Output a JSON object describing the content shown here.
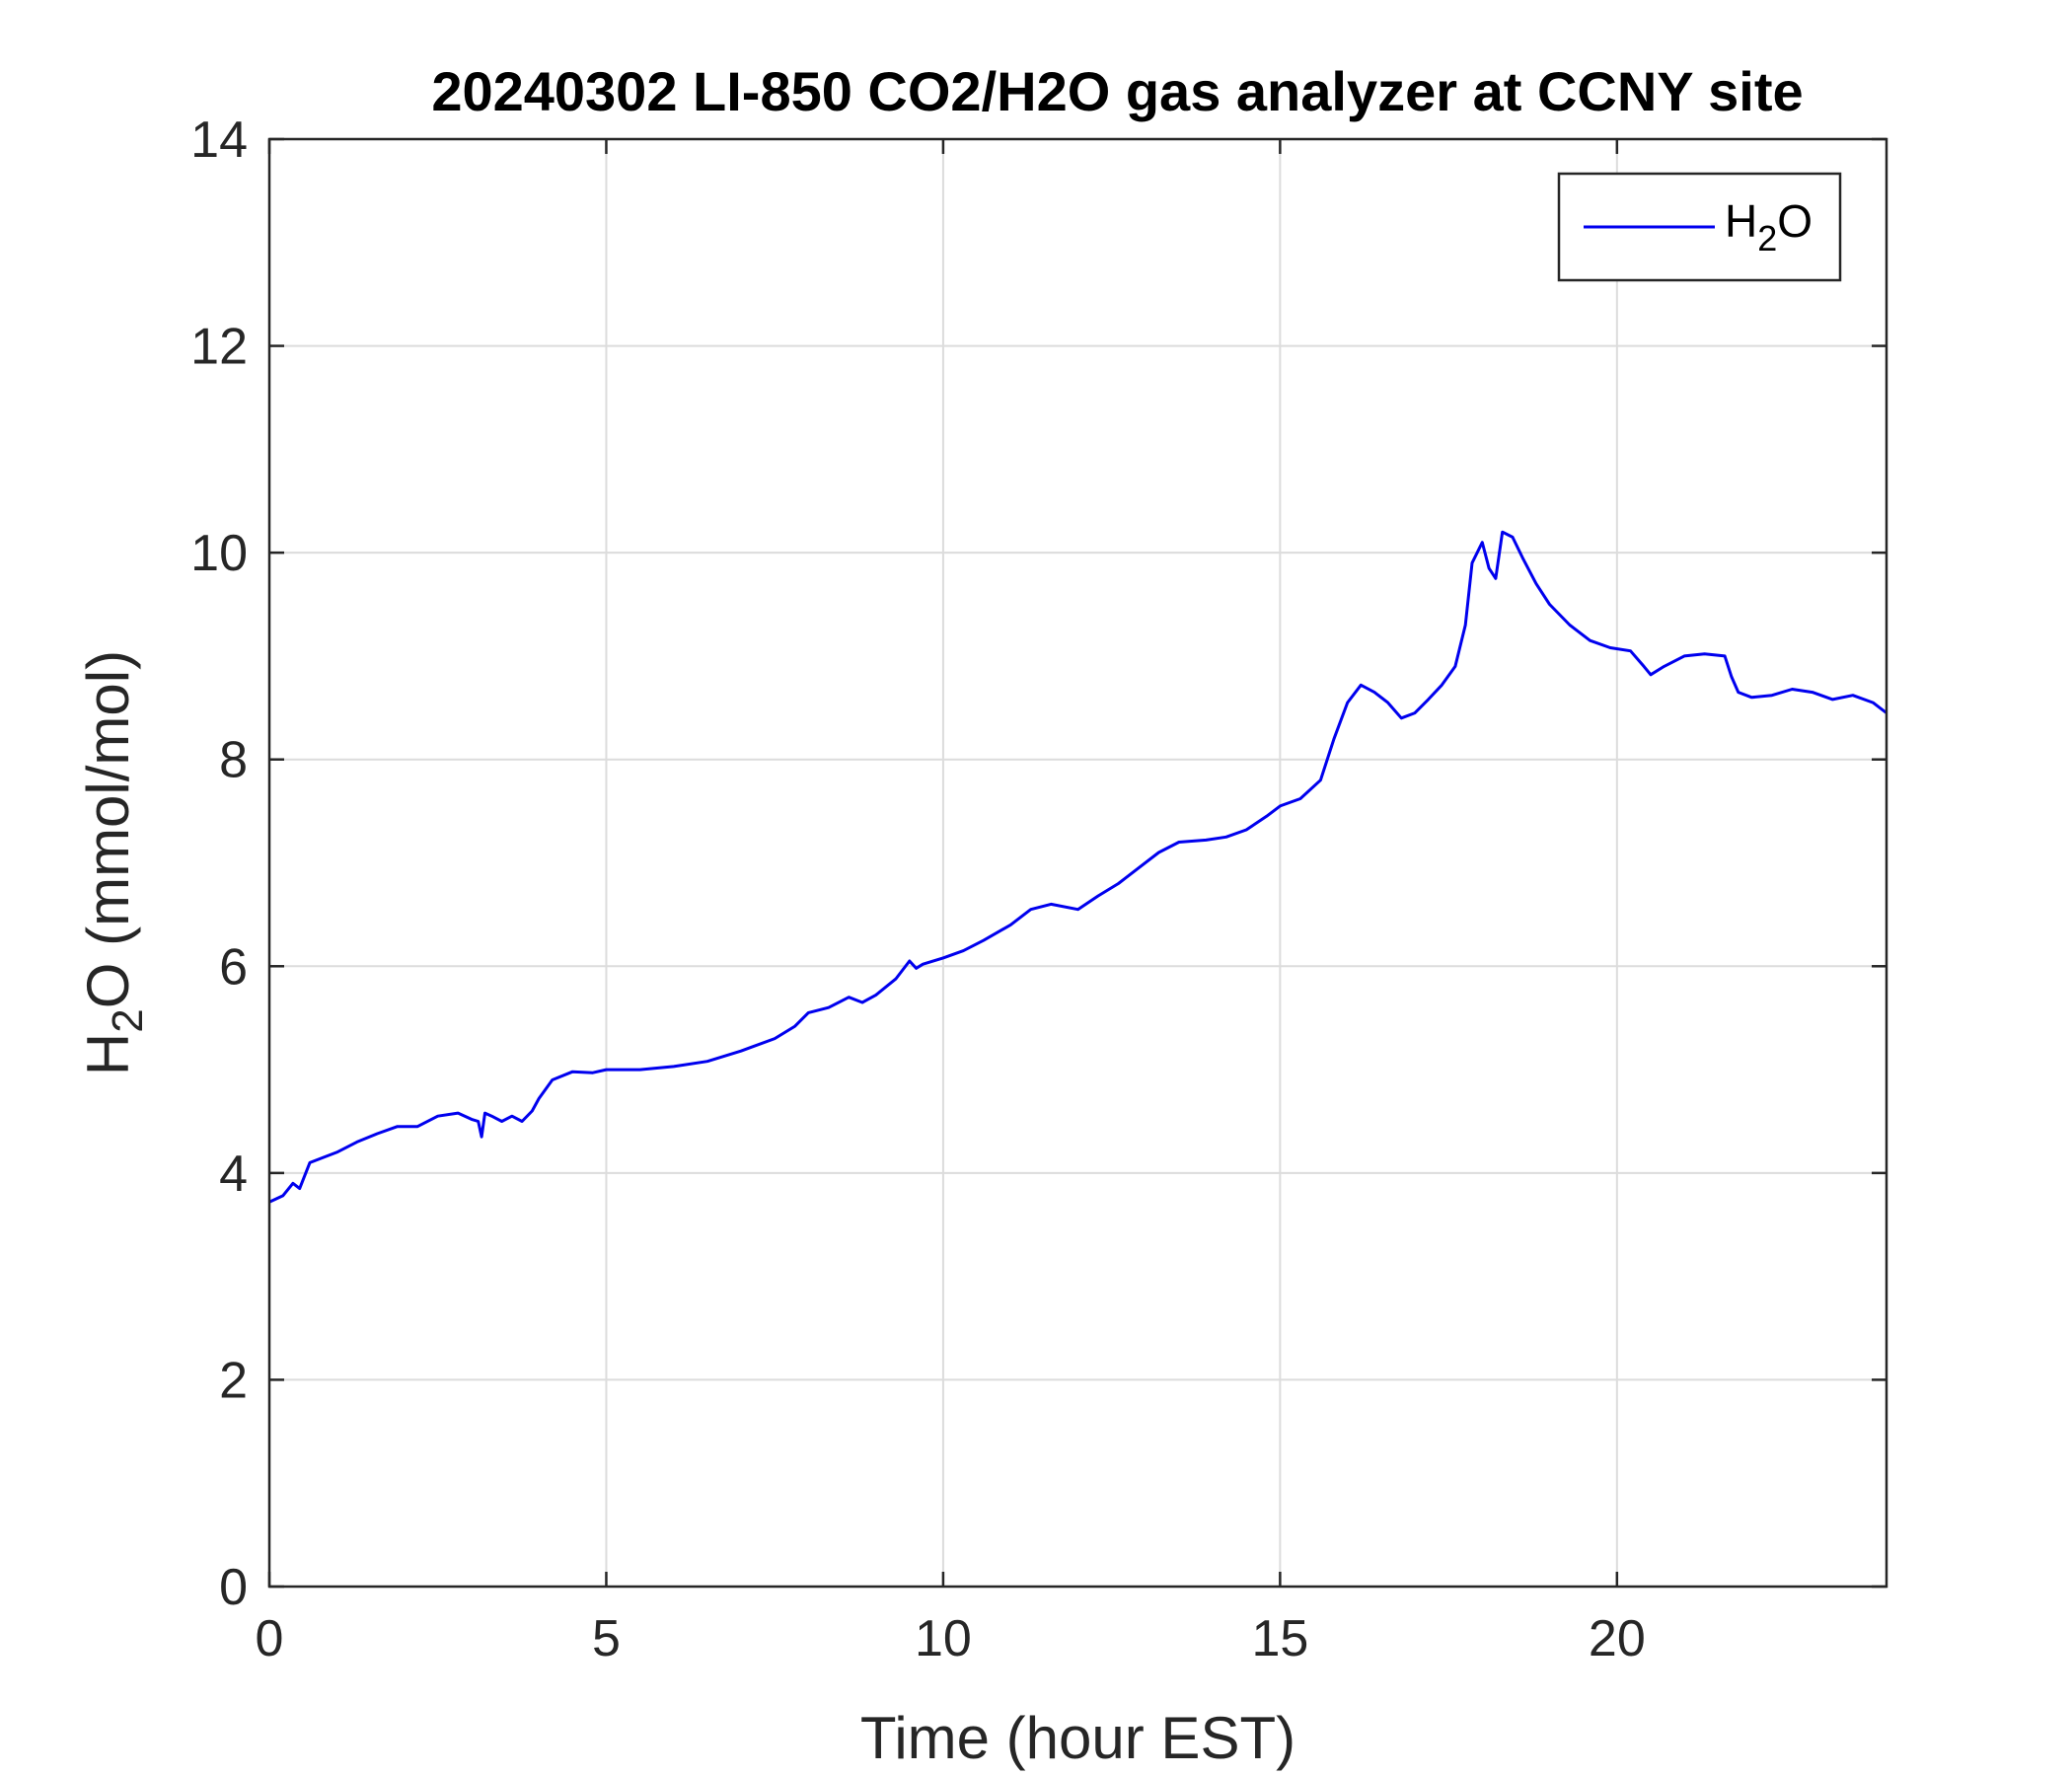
{
  "chart_data": {
    "type": "line",
    "title": "20240302 LI-850 CO2/H2O gas analyzer at CCNY site",
    "xlabel": "Time (hour EST)",
    "ylabel": {
      "main": "H",
      "sub": "2",
      "rest": "O (mmol/mol)"
    },
    "xlim": [
      0,
      24
    ],
    "ylim": [
      0,
      14
    ],
    "xticks": [
      0,
      5,
      10,
      15,
      20
    ],
    "yticks": [
      0,
      2,
      4,
      6,
      8,
      10,
      12,
      14
    ],
    "grid": true,
    "legend_position": "top-right",
    "series": [
      {
        "name": {
          "main": "H",
          "sub": "2",
          "rest": "O"
        },
        "color": "#0000ee",
        "x": [
          0,
          0.2,
          0.35,
          0.45,
          0.6,
          0.8,
          1.0,
          1.3,
          1.6,
          1.9,
          2.2,
          2.5,
          2.8,
          3.0,
          3.1,
          3.15,
          3.2,
          3.3,
          3.45,
          3.6,
          3.75,
          3.9,
          4.0,
          4.2,
          4.5,
          4.8,
          5.0,
          5.5,
          6.0,
          6.5,
          7.0,
          7.5,
          7.8,
          8.0,
          8.3,
          8.6,
          8.8,
          9.0,
          9.3,
          9.5,
          9.6,
          9.7,
          10.0,
          10.3,
          10.6,
          11.0,
          11.3,
          11.6,
          12.0,
          12.3,
          12.6,
          12.9,
          13.2,
          13.5,
          13.9,
          14.2,
          14.5,
          14.8,
          15.0,
          15.3,
          15.6,
          15.8,
          16.0,
          16.2,
          16.4,
          16.6,
          16.8,
          17.0,
          17.2,
          17.4,
          17.6,
          17.75,
          17.85,
          18.0,
          18.1,
          18.2,
          18.3,
          18.45,
          18.6,
          18.8,
          19.0,
          19.3,
          19.6,
          19.9,
          20.2,
          20.4,
          20.5,
          20.7,
          21.0,
          21.3,
          21.6,
          21.7,
          21.8,
          22.0,
          22.3,
          22.6,
          22.9,
          23.2,
          23.5,
          23.8,
          24.0
        ],
        "values": [
          3.72,
          3.78,
          3.9,
          3.85,
          4.1,
          4.15,
          4.2,
          4.3,
          4.38,
          4.45,
          4.45,
          4.55,
          4.58,
          4.52,
          4.5,
          4.35,
          4.58,
          4.55,
          4.5,
          4.55,
          4.5,
          4.6,
          4.72,
          4.9,
          4.98,
          4.97,
          5.0,
          5.0,
          5.03,
          5.08,
          5.18,
          5.3,
          5.42,
          5.55,
          5.6,
          5.7,
          5.65,
          5.72,
          5.88,
          6.05,
          5.98,
          6.02,
          6.08,
          6.15,
          6.25,
          6.4,
          6.55,
          6.6,
          6.55,
          6.68,
          6.8,
          6.95,
          7.1,
          7.2,
          7.22,
          7.25,
          7.32,
          7.45,
          7.55,
          7.62,
          7.8,
          8.2,
          8.55,
          8.72,
          8.65,
          8.55,
          8.4,
          8.45,
          8.58,
          8.72,
          8.9,
          9.3,
          9.9,
          10.1,
          9.85,
          9.75,
          10.2,
          10.15,
          9.95,
          9.7,
          9.5,
          9.3,
          9.15,
          9.08,
          9.05,
          8.9,
          8.82,
          8.9,
          9.0,
          9.02,
          9.0,
          8.8,
          8.65,
          8.6,
          8.62,
          8.68,
          8.65,
          8.58,
          8.62,
          8.55,
          8.45
        ]
      }
    ]
  }
}
